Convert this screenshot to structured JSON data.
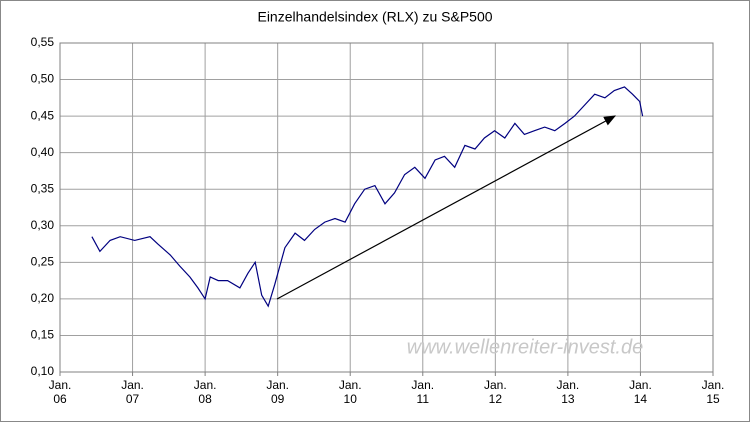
{
  "chart_data": {
    "type": "line",
    "title": "Einzelhandelsindex (RLX) zu S&P500",
    "annotation": "www.wellenreiter-invest.de",
    "xlim": [
      2006,
      2015
    ],
    "xticks": [
      {
        "value": 2006,
        "label": "Jan. 06"
      },
      {
        "value": 2007,
        "label": "Jan. 07"
      },
      {
        "value": 2008,
        "label": "Jan. 08"
      },
      {
        "value": 2009,
        "label": "Jan. 09"
      },
      {
        "value": 2010,
        "label": "Jan. 10"
      },
      {
        "value": 2011,
        "label": "Jan. 11"
      },
      {
        "value": 2012,
        "label": "Jan. 12"
      },
      {
        "value": 2013,
        "label": "Jan. 13"
      },
      {
        "value": 2014,
        "label": "Jan. 14"
      },
      {
        "value": 2015,
        "label": "Jan. 15"
      }
    ],
    "ylim": [
      0.1,
      0.55
    ],
    "yticks": [
      {
        "value": 0.1,
        "label": "0,10"
      },
      {
        "value": 0.15,
        "label": "0,15"
      },
      {
        "value": 0.2,
        "label": "0,20"
      },
      {
        "value": 0.25,
        "label": "0,25"
      },
      {
        "value": 0.3,
        "label": "0,30"
      },
      {
        "value": 0.35,
        "label": "0,35"
      },
      {
        "value": 0.4,
        "label": "0,40"
      },
      {
        "value": 0.45,
        "label": "0,45"
      },
      {
        "value": 0.5,
        "label": "0,50"
      },
      {
        "value": 0.55,
        "label": "0,55"
      }
    ],
    "grid": true,
    "color": "#000080",
    "x": [
      2006.44,
      2006.55,
      2006.69,
      2006.83,
      2007.03,
      2007.24,
      2007.35,
      2007.52,
      2007.65,
      2007.79,
      2007.9,
      2008.0,
      2008.07,
      2008.18,
      2008.31,
      2008.48,
      2008.59,
      2008.69,
      2008.78,
      2008.87,
      2008.96,
      2009.1,
      2009.24,
      2009.37,
      2009.51,
      2009.65,
      2009.79,
      2009.93,
      2010.06,
      2010.2,
      2010.34,
      2010.48,
      2010.61,
      2010.75,
      2010.89,
      2011.03,
      2011.17,
      2011.3,
      2011.44,
      2011.58,
      2011.72,
      2011.85,
      2011.99,
      2012.13,
      2012.27,
      2012.4,
      2012.54,
      2012.68,
      2012.82,
      2012.96,
      2013.09,
      2013.23,
      2013.37,
      2013.51,
      2013.64,
      2013.78,
      2013.89,
      2013.99,
      2014.03
    ],
    "values": [
      0.285,
      0.265,
      0.28,
      0.285,
      0.28,
      0.285,
      0.275,
      0.26,
      0.245,
      0.23,
      0.215,
      0.2,
      0.23,
      0.225,
      0.225,
      0.215,
      0.235,
      0.25,
      0.205,
      0.19,
      0.22,
      0.27,
      0.29,
      0.28,
      0.295,
      0.305,
      0.31,
      0.305,
      0.33,
      0.35,
      0.355,
      0.33,
      0.345,
      0.37,
      0.38,
      0.365,
      0.39,
      0.395,
      0.38,
      0.41,
      0.405,
      0.42,
      0.43,
      0.42,
      0.44,
      0.425,
      0.43,
      0.435,
      0.43,
      0.44,
      0.45,
      0.465,
      0.48,
      0.475,
      0.485,
      0.49,
      0.48,
      0.47,
      0.45
    ]
  }
}
